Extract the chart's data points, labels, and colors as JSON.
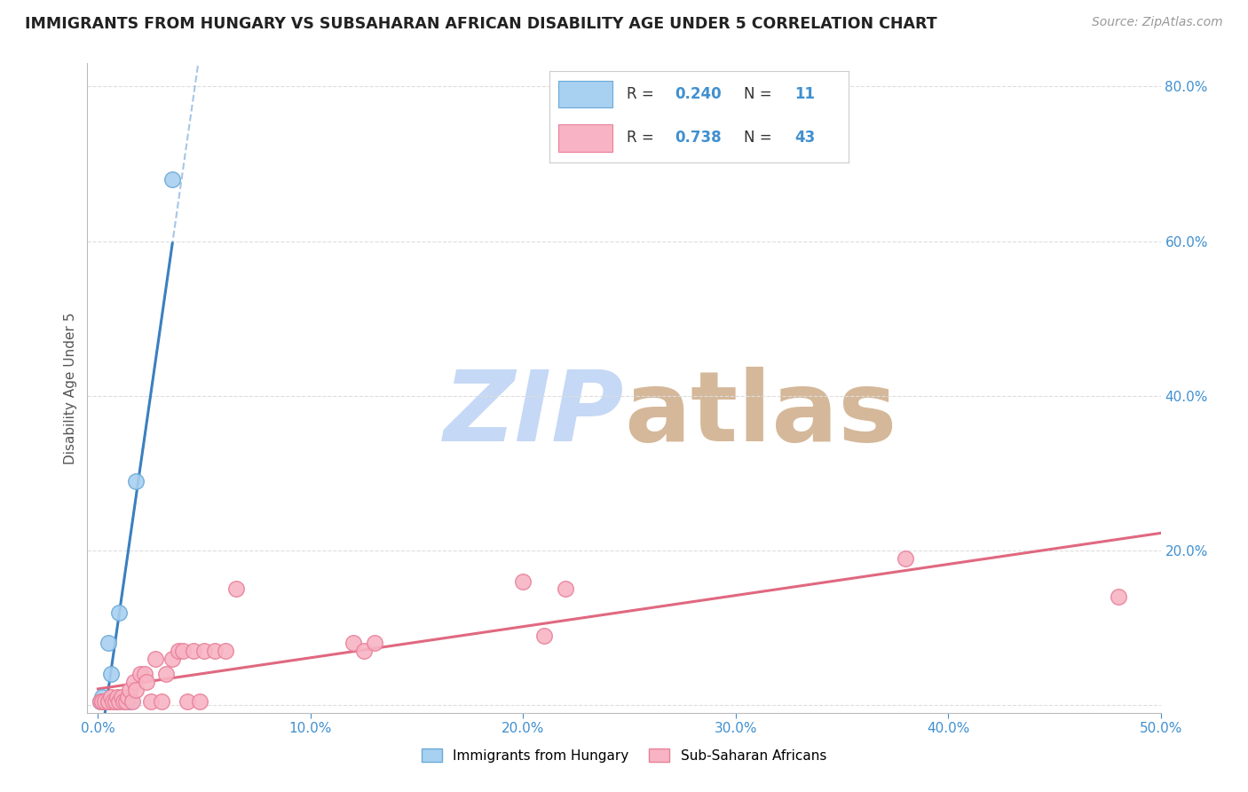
{
  "title": "IMMIGRANTS FROM HUNGARY VS SUBSAHARAN AFRICAN DISABILITY AGE UNDER 5 CORRELATION CHART",
  "source": "Source: ZipAtlas.com",
  "ylabel": "Disability Age Under 5",
  "xlim": [
    -0.5,
    50.0
  ],
  "ylim": [
    -1.0,
    83.0
  ],
  "xticks": [
    0,
    10,
    20,
    30,
    40,
    50
  ],
  "yticks": [
    0,
    20,
    40,
    60,
    80
  ],
  "xtick_labels": [
    "0.0%",
    "10.0%",
    "20.0%",
    "30.0%",
    "40.0%",
    "50.0%"
  ],
  "ytick_labels": [
    "",
    "20.0%",
    "40.0%",
    "60.0%",
    "80.0%"
  ],
  "hungary_color": "#A8D0F0",
  "hungary_edge_color": "#6AAAD8",
  "subsaharan_color": "#F8B4C4",
  "subsaharan_edge_color": "#E8809A",
  "trendline_hungary_color": "#3A80C0",
  "trendline_subsaharan_color": "#E06880",
  "dashed_color": "#90B8E0",
  "legend_text_color": "#4090D0",
  "watermark_zip_color": "#C5D8F5",
  "watermark_atlas_color": "#D5B89A",
  "R_hungary": "0.240",
  "N_hungary": "11",
  "R_subsaharan": "0.738",
  "N_subsaharan": "43",
  "hungary_x": [
    0.1,
    0.2,
    0.3,
    0.4,
    0.5,
    0.6,
    0.8,
    1.0,
    1.5,
    1.8,
    3.5
  ],
  "hungary_y": [
    0.5,
    1.0,
    0.5,
    0.5,
    8.0,
    4.0,
    0.5,
    12.0,
    0.5,
    29.0,
    68.0
  ],
  "subsaharan_x": [
    0.1,
    0.2,
    0.3,
    0.5,
    0.5,
    0.6,
    0.7,
    0.8,
    0.9,
    1.0,
    1.1,
    1.2,
    1.3,
    1.4,
    1.5,
    1.6,
    1.7,
    1.8,
    2.0,
    2.2,
    2.3,
    2.5,
    2.7,
    3.0,
    3.2,
    3.5,
    3.8,
    4.0,
    4.2,
    4.5,
    4.8,
    5.0,
    5.5,
    6.0,
    6.5,
    12.0,
    12.5,
    13.0,
    20.0,
    21.0,
    22.0,
    38.0,
    48.0
  ],
  "subsaharan_y": [
    0.5,
    0.5,
    0.5,
    0.5,
    0.5,
    1.0,
    0.5,
    0.5,
    1.0,
    0.5,
    1.0,
    0.5,
    0.5,
    1.0,
    2.0,
    0.5,
    3.0,
    2.0,
    4.0,
    4.0,
    3.0,
    0.5,
    6.0,
    0.5,
    4.0,
    6.0,
    7.0,
    7.0,
    0.5,
    7.0,
    0.5,
    7.0,
    7.0,
    7.0,
    15.0,
    8.0,
    7.0,
    8.0,
    16.0,
    9.0,
    15.0,
    19.0,
    14.0
  ],
  "background_color": "#FFFFFF",
  "grid_color": "#DDDDDD"
}
